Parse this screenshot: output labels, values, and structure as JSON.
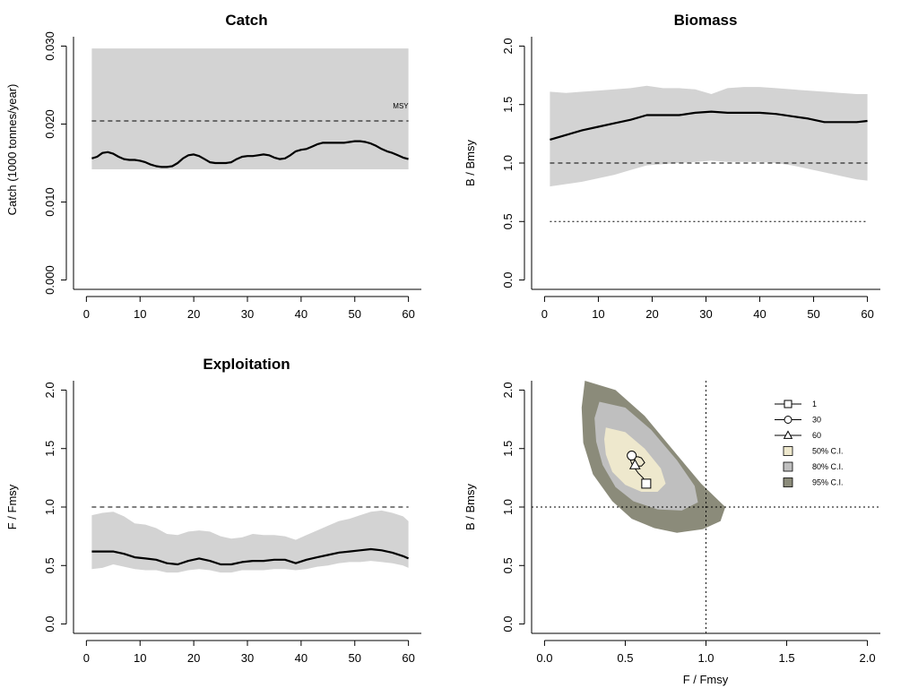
{
  "chart_data": [
    {
      "panel": "catch",
      "type": "line",
      "title": "Catch",
      "xlabel": "",
      "ylabel": "Catch (1000 tonnes/year)",
      "xlim": [
        0,
        60
      ],
      "ylim": [
        0,
        0.03
      ],
      "x_ticks": [
        0,
        10,
        20,
        30,
        40,
        50,
        60
      ],
      "y_ticks": [
        0,
        0.01,
        0.02,
        0.03
      ],
      "y_tick_labels": [
        "0.000",
        "0.010",
        "0.020",
        "0.030"
      ],
      "x": [
        1,
        2,
        3,
        4,
        5,
        6,
        7,
        8,
        9,
        10,
        11,
        12,
        13,
        14,
        15,
        16,
        17,
        18,
        19,
        20,
        21,
        22,
        23,
        24,
        25,
        26,
        27,
        28,
        29,
        30,
        31,
        32,
        33,
        34,
        35,
        36,
        37,
        38,
        39,
        40,
        41,
        42,
        43,
        44,
        45,
        46,
        47,
        48,
        49,
        50,
        51,
        52,
        53,
        54,
        55,
        56,
        57,
        58,
        59,
        60
      ],
      "series": [
        {
          "values": [
            0.0156,
            0.0158,
            0.0163,
            0.0164,
            0.0162,
            0.0158,
            0.0155,
            0.0154,
            0.0154,
            0.0153,
            0.0151,
            0.0148,
            0.0146,
            0.0145,
            0.0145,
            0.0146,
            0.015,
            0.0156,
            0.016,
            0.0161,
            0.0159,
            0.0155,
            0.0151,
            0.015,
            0.015,
            0.015,
            0.0151,
            0.0155,
            0.0158,
            0.0159,
            0.0159,
            0.016,
            0.0161,
            0.016,
            0.0157,
            0.0155,
            0.0156,
            0.016,
            0.0165,
            0.0167,
            0.0168,
            0.0171,
            0.0174,
            0.0176,
            0.0176,
            0.0176,
            0.0176,
            0.0176,
            0.0177,
            0.0178,
            0.0178,
            0.0177,
            0.0175,
            0.0172,
            0.0168,
            0.0165,
            0.0163,
            0.016,
            0.0157,
            0.0155
          ]
        }
      ],
      "ci_lower": [
        0.0142,
        0.0142,
        0.0142,
        0.0142,
        0.0142,
        0.0142,
        0.0142,
        0.0142,
        0.0142,
        0.0142,
        0.0142,
        0.0142,
        0.0142,
        0.0142,
        0.0142,
        0.0142,
        0.0142,
        0.0142,
        0.0142,
        0.0142,
        0.0142,
        0.0142,
        0.0142,
        0.0142,
        0.0142,
        0.0142,
        0.0142,
        0.0142,
        0.0142,
        0.0142,
        0.0142,
        0.0142,
        0.0142,
        0.0142,
        0.0142,
        0.0142,
        0.0142,
        0.0142,
        0.0142,
        0.0142,
        0.0142,
        0.0142,
        0.0142,
        0.0142,
        0.0142,
        0.0142,
        0.0142,
        0.0142,
        0.0142,
        0.0142,
        0.0142,
        0.0142,
        0.0142,
        0.0142,
        0.0142,
        0.0142,
        0.0142,
        0.0142,
        0.0142,
        0.0142
      ],
      "ci_upper": [
        0.0297,
        0.0297,
        0.0297,
        0.0297,
        0.0297,
        0.0297,
        0.0297,
        0.0297,
        0.0297,
        0.0297,
        0.0297,
        0.0297,
        0.0297,
        0.0297,
        0.0297,
        0.0297,
        0.0297,
        0.0297,
        0.0297,
        0.0297,
        0.0297,
        0.0297,
        0.0297,
        0.0297,
        0.0297,
        0.0297,
        0.0297,
        0.0297,
        0.0297,
        0.0297,
        0.0297,
        0.0297,
        0.0297,
        0.0297,
        0.0297,
        0.0297,
        0.0297,
        0.0297,
        0.0297,
        0.0297,
        0.0297,
        0.0297,
        0.0297,
        0.0297,
        0.0297,
        0.0297,
        0.0297,
        0.0297,
        0.0297,
        0.0297,
        0.0297,
        0.0297,
        0.0297,
        0.0297,
        0.0297,
        0.0297,
        0.0297,
        0.0297,
        0.0297,
        0.0297
      ],
      "ref_lines": [
        {
          "y": 0.0204,
          "style": "dashed",
          "label": "MSY"
        }
      ],
      "colors": {
        "line": "#000000",
        "band": "#d3d3d3"
      }
    },
    {
      "panel": "biomass",
      "type": "line",
      "title": "Biomass",
      "xlabel": "",
      "ylabel": "B / Bmsy",
      "xlim": [
        0,
        60
      ],
      "ylim": [
        0,
        2
      ],
      "x_ticks": [
        0,
        10,
        20,
        30,
        40,
        50,
        60
      ],
      "y_ticks": [
        0,
        0.5,
        1,
        1.5,
        2
      ],
      "y_tick_labels": [
        "0.0",
        "0.5",
        "1.0",
        "1.5",
        "2.0"
      ],
      "x": [
        1,
        4,
        7,
        10,
        13,
        16,
        19,
        22,
        25,
        28,
        31,
        34,
        37,
        40,
        43,
        46,
        49,
        52,
        55,
        58,
        60
      ],
      "series": [
        {
          "values": [
            1.2,
            1.24,
            1.28,
            1.31,
            1.34,
            1.37,
            1.41,
            1.41,
            1.41,
            1.43,
            1.44,
            1.43,
            1.43,
            1.43,
            1.42,
            1.4,
            1.38,
            1.35,
            1.35,
            1.35,
            1.36
          ]
        }
      ],
      "ci_lower": [
        0.8,
        0.82,
        0.84,
        0.87,
        0.9,
        0.94,
        0.98,
        0.99,
        1.0,
        1.01,
        1.02,
        1.01,
        1.01,
        1.01,
        1.0,
        0.98,
        0.95,
        0.92,
        0.89,
        0.86,
        0.85
      ],
      "ci_upper": [
        1.61,
        1.6,
        1.61,
        1.62,
        1.63,
        1.64,
        1.66,
        1.64,
        1.64,
        1.63,
        1.59,
        1.64,
        1.65,
        1.65,
        1.64,
        1.63,
        1.62,
        1.61,
        1.6,
        1.59,
        1.59
      ],
      "ref_lines": [
        {
          "y": 1.0,
          "style": "dashed"
        },
        {
          "y": 0.5,
          "style": "dotted"
        }
      ],
      "colors": {
        "line": "#000000",
        "band": "#d3d3d3"
      }
    },
    {
      "panel": "exploitation",
      "type": "line",
      "title": "Exploitation",
      "xlabel": "",
      "ylabel": "F / Fmsy",
      "xlim": [
        0,
        60
      ],
      "ylim": [
        0,
        2
      ],
      "x_ticks": [
        0,
        10,
        20,
        30,
        40,
        50,
        60
      ],
      "y_ticks": [
        0,
        0.5,
        1,
        1.5,
        2
      ],
      "y_tick_labels": [
        "0.0",
        "0.5",
        "1.0",
        "1.5",
        "2.0"
      ],
      "x": [
        1,
        3,
        5,
        7,
        9,
        11,
        13,
        15,
        17,
        19,
        21,
        23,
        25,
        27,
        29,
        31,
        33,
        35,
        37,
        39,
        41,
        43,
        45,
        47,
        49,
        51,
        53,
        55,
        57,
        59,
        60
      ],
      "series": [
        {
          "values": [
            0.62,
            0.62,
            0.62,
            0.6,
            0.57,
            0.56,
            0.55,
            0.52,
            0.51,
            0.54,
            0.56,
            0.54,
            0.51,
            0.51,
            0.53,
            0.54,
            0.54,
            0.55,
            0.55,
            0.52,
            0.55,
            0.57,
            0.59,
            0.61,
            0.62,
            0.63,
            0.64,
            0.63,
            0.61,
            0.58,
            0.56
          ]
        }
      ],
      "ci_lower": [
        0.47,
        0.48,
        0.51,
        0.49,
        0.47,
        0.46,
        0.46,
        0.44,
        0.44,
        0.46,
        0.47,
        0.46,
        0.44,
        0.44,
        0.46,
        0.46,
        0.46,
        0.47,
        0.47,
        0.46,
        0.47,
        0.49,
        0.5,
        0.52,
        0.53,
        0.53,
        0.54,
        0.53,
        0.52,
        0.5,
        0.48
      ],
      "ci_upper": [
        0.93,
        0.95,
        0.96,
        0.92,
        0.86,
        0.85,
        0.82,
        0.77,
        0.76,
        0.79,
        0.8,
        0.79,
        0.75,
        0.73,
        0.74,
        0.77,
        0.76,
        0.76,
        0.75,
        0.72,
        0.76,
        0.8,
        0.84,
        0.88,
        0.9,
        0.93,
        0.96,
        0.97,
        0.95,
        0.92,
        0.88
      ],
      "ref_lines": [
        {
          "y": 1.0,
          "style": "dashed"
        }
      ],
      "colors": {
        "line": "#000000",
        "band": "#d3d3d3"
      }
    },
    {
      "panel": "kobe",
      "type": "scatter",
      "title": "",
      "xlabel": "F / Fmsy",
      "ylabel": "B / Bmsy",
      "xlim": [
        0,
        2
      ],
      "ylim": [
        0,
        2
      ],
      "x_ticks": [
        0,
        0.5,
        1,
        1.5,
        2
      ],
      "x_tick_labels": [
        "0.0",
        "0.5",
        "1.0",
        "1.5",
        "2.0"
      ],
      "y_ticks": [
        0,
        0.5,
        1,
        1.5,
        2
      ],
      "y_tick_labels": [
        "0.0",
        "0.5",
        "1.0",
        "1.5",
        "2.0"
      ],
      "ref_lines": [
        {
          "x": 1.0,
          "style": "dotted"
        },
        {
          "y": 1.0,
          "style": "dotted"
        }
      ],
      "contours": [
        {
          "name": "95% C.I.",
          "color": "#8b8b7a",
          "points": [
            [
              0.25,
              2.08
            ],
            [
              0.44,
              2.0
            ],
            [
              0.62,
              1.78
            ],
            [
              0.8,
              1.48
            ],
            [
              0.97,
              1.2
            ],
            [
              1.12,
              1.0
            ],
            [
              1.09,
              0.88
            ],
            [
              0.98,
              0.81
            ],
            [
              0.82,
              0.78
            ],
            [
              0.68,
              0.82
            ],
            [
              0.54,
              0.9
            ],
            [
              0.42,
              1.05
            ],
            [
              0.3,
              1.28
            ],
            [
              0.24,
              1.55
            ],
            [
              0.23,
              1.85
            ]
          ]
        },
        {
          "name": "80% C.I.",
          "color": "#bfbfbf",
          "points": [
            [
              0.34,
              1.9
            ],
            [
              0.5,
              1.85
            ],
            [
              0.66,
              1.66
            ],
            [
              0.82,
              1.4
            ],
            [
              0.93,
              1.18
            ],
            [
              0.95,
              1.04
            ],
            [
              0.85,
              0.97
            ],
            [
              0.7,
              0.98
            ],
            [
              0.55,
              1.05
            ],
            [
              0.44,
              1.17
            ],
            [
              0.36,
              1.36
            ],
            [
              0.32,
              1.56
            ],
            [
              0.31,
              1.76
            ]
          ]
        },
        {
          "name": "50% C.I.",
          "color": "#eee8cd",
          "points": [
            [
              0.38,
              1.68
            ],
            [
              0.5,
              1.64
            ],
            [
              0.62,
              1.5
            ],
            [
              0.72,
              1.33
            ],
            [
              0.75,
              1.2
            ],
            [
              0.7,
              1.13
            ],
            [
              0.6,
              1.13
            ],
            [
              0.5,
              1.19
            ],
            [
              0.42,
              1.3
            ],
            [
              0.38,
              1.45
            ],
            [
              0.37,
              1.58
            ]
          ]
        }
      ],
      "trajectory": {
        "x": [
          0.63,
          0.61,
          0.58,
          0.56,
          0.54,
          0.53,
          0.54,
          0.55,
          0.56,
          0.57,
          0.58,
          0.6,
          0.62,
          0.6,
          0.58,
          0.57,
          0.56
        ],
        "y": [
          1.2,
          1.25,
          1.29,
          1.33,
          1.37,
          1.41,
          1.43,
          1.44,
          1.44,
          1.43,
          1.43,
          1.42,
          1.38,
          1.35,
          1.35,
          1.35,
          1.36
        ]
      },
      "markers": [
        {
          "name": "1",
          "shape": "square",
          "x": 0.63,
          "y": 1.2
        },
        {
          "name": "30",
          "shape": "circle",
          "x": 0.54,
          "y": 1.44
        },
        {
          "name": "60",
          "shape": "triangle",
          "x": 0.56,
          "y": 1.36
        }
      ],
      "legend": {
        "placement": "top-right",
        "entries": [
          {
            "label": "1",
            "kind": "line-marker",
            "shape": "square"
          },
          {
            "label": "30",
            "kind": "line-marker",
            "shape": "circle"
          },
          {
            "label": "60",
            "kind": "line-marker",
            "shape": "triangle"
          },
          {
            "label": "50% C.I.",
            "kind": "fill",
            "color": "#eee8cd"
          },
          {
            "label": "80% C.I.",
            "kind": "fill",
            "color": "#bfbfbf"
          },
          {
            "label": "95% C.I.",
            "kind": "fill",
            "color": "#8b8b7a"
          }
        ]
      }
    }
  ]
}
